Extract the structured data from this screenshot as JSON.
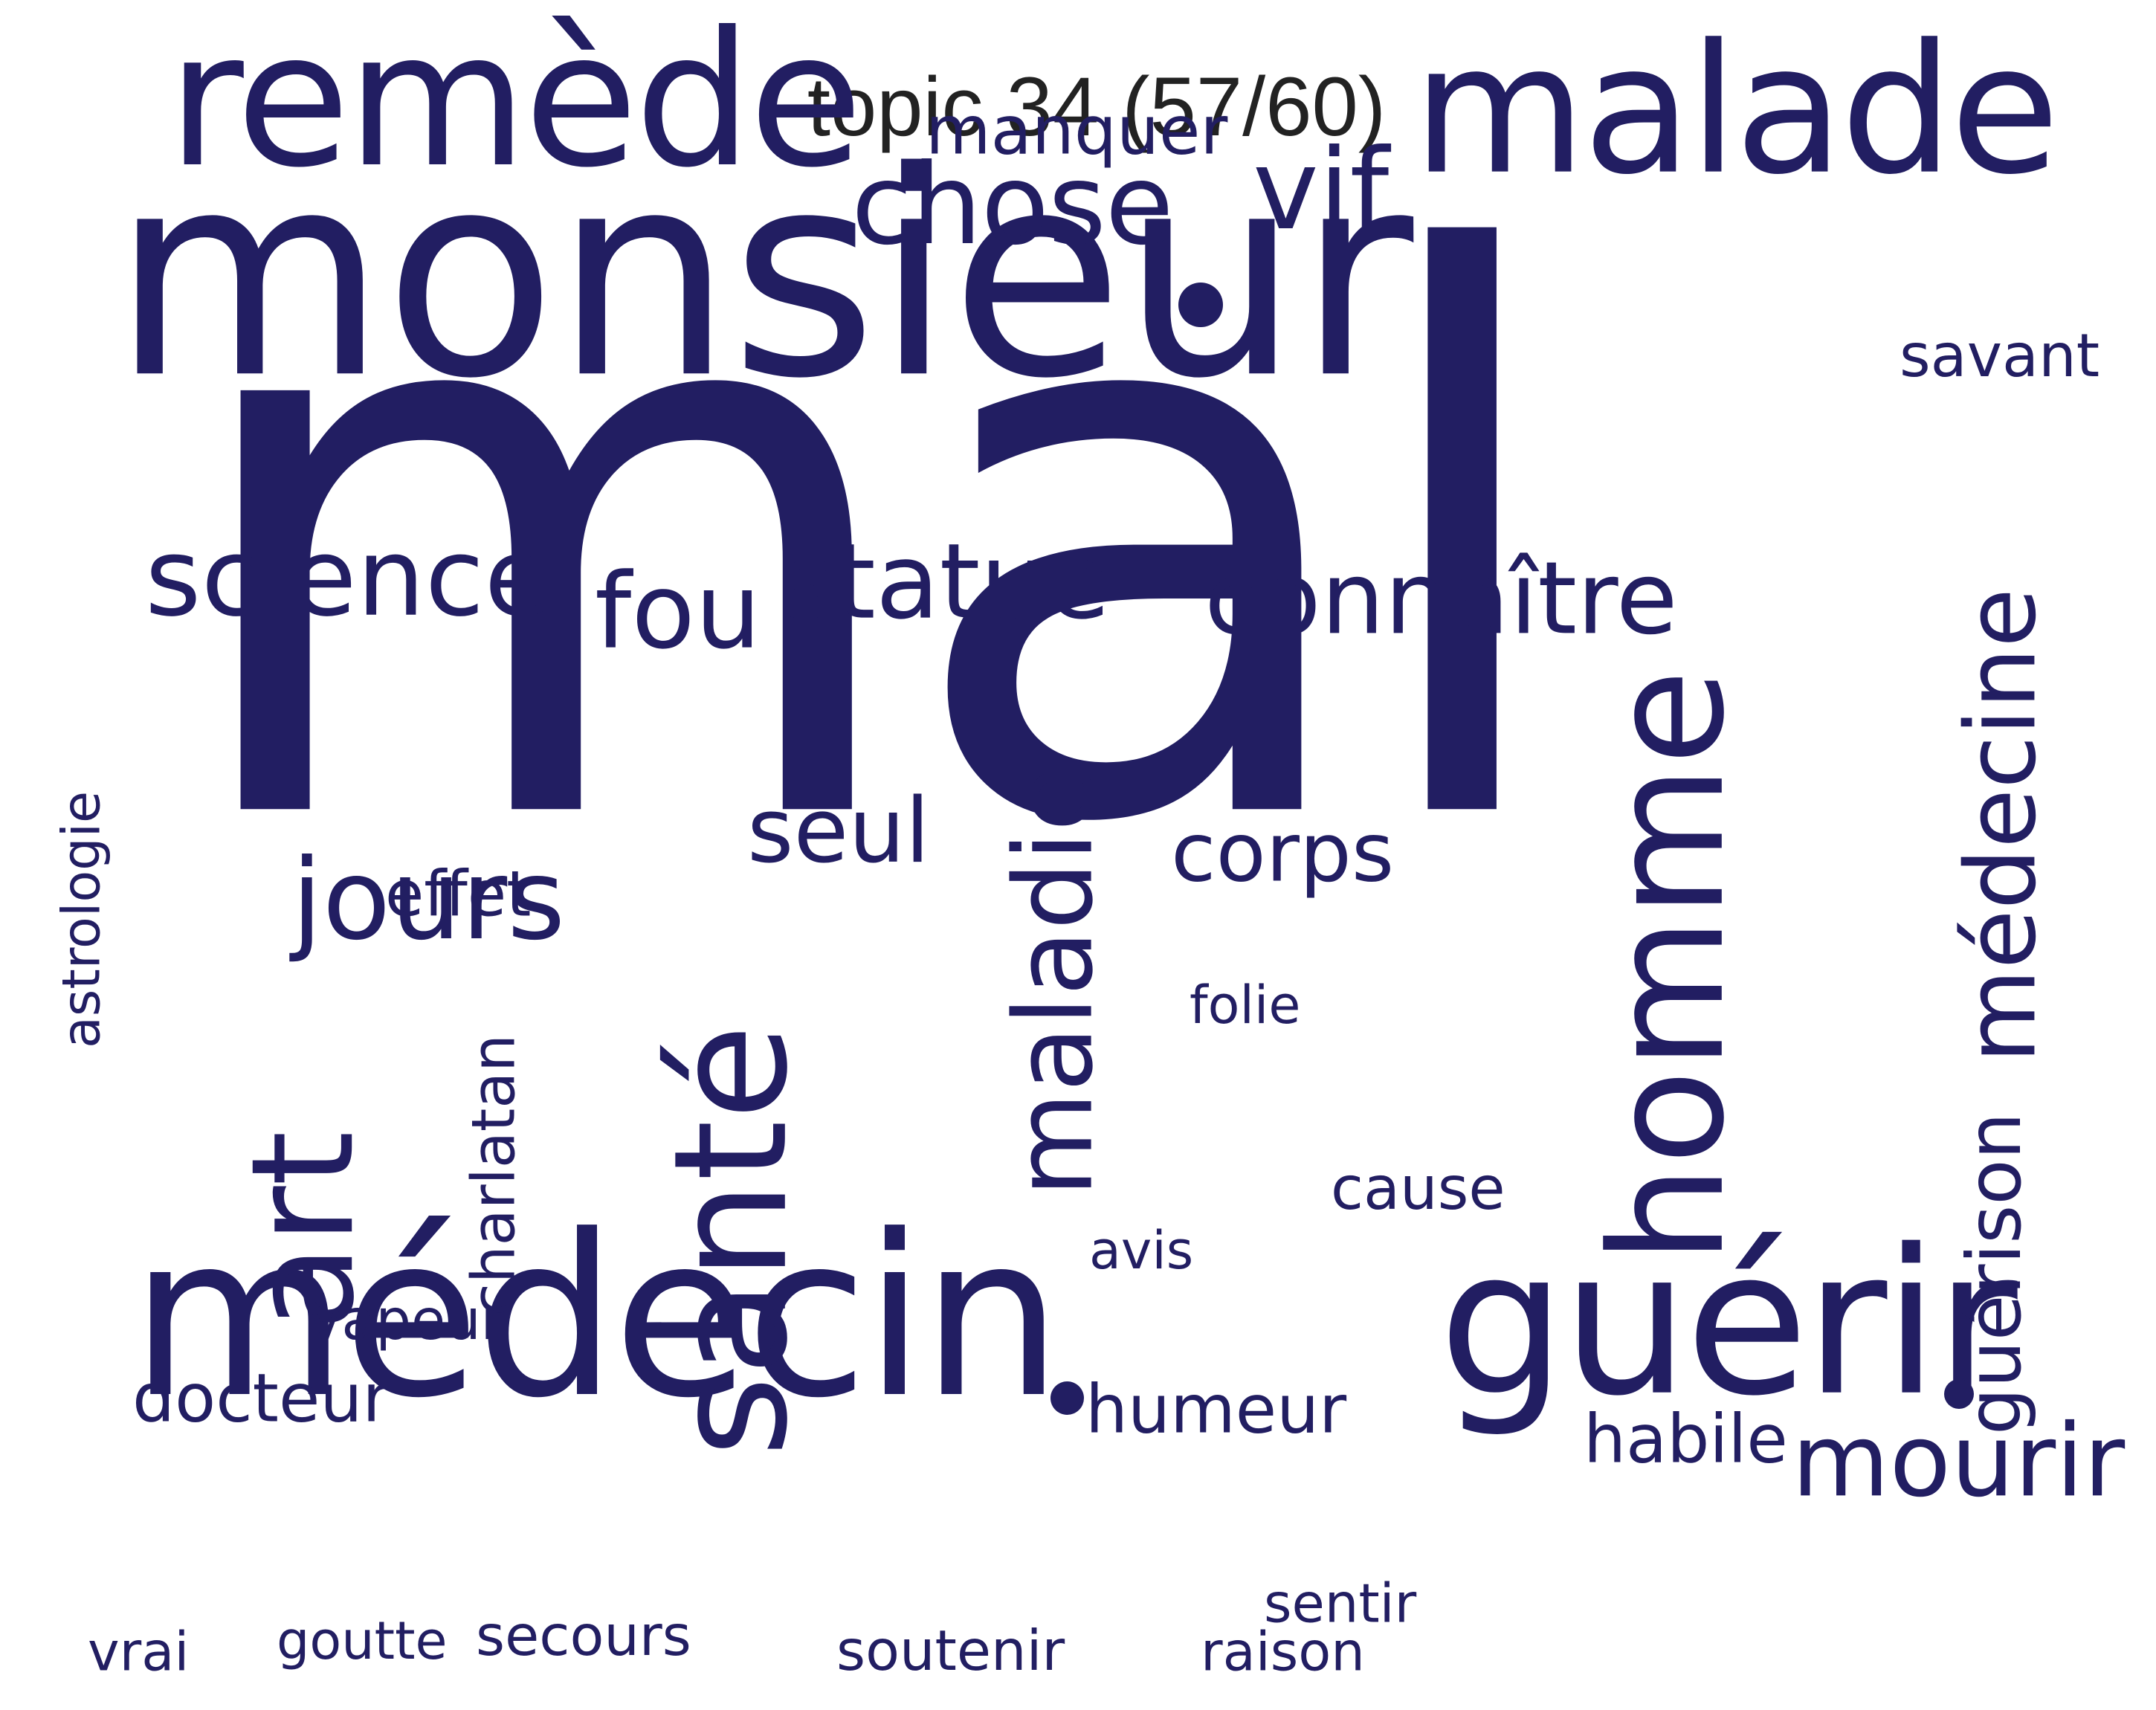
{
  "title": "topic 34 (57/60)",
  "word_color": "#221e62",
  "title_color": "#222222",
  "words": [
    {
      "text": "mal",
      "rank": 1
    },
    {
      "text": "monsieur",
      "rank": 2
    },
    {
      "text": "médecin",
      "rank": 3
    },
    {
      "text": "remède",
      "rank": 4
    },
    {
      "text": "malade",
      "rank": 5
    },
    {
      "text": "guérir",
      "rank": 6
    },
    {
      "text": "homme",
      "rank": 7
    },
    {
      "text": "santé",
      "rank": 8
    },
    {
      "text": "art",
      "rank": 9
    },
    {
      "text": "maladie",
      "rank": 10
    },
    {
      "text": "médecine",
      "rank": 11
    },
    {
      "text": "chose",
      "rank": 12
    },
    {
      "text": "vif",
      "rank": 13
    },
    {
      "text": "science",
      "rank": 14
    },
    {
      "text": "connaître",
      "rank": 15
    },
    {
      "text": "statue",
      "rank": 16
    },
    {
      "text": "fou",
      "rank": 17
    },
    {
      "text": "jours",
      "rank": 18
    },
    {
      "text": "seul",
      "rank": 19
    },
    {
      "text": "corps",
      "rank": 20
    },
    {
      "text": "mourir",
      "rank": 21
    },
    {
      "text": "guérison",
      "rank": 22
    },
    {
      "text": "manquer",
      "rank": 23
    },
    {
      "text": "docteur",
      "rank": 24
    },
    {
      "text": "humeur",
      "rank": 25
    },
    {
      "text": "charlatan",
      "rank": 26
    },
    {
      "text": "habile",
      "rank": 27
    },
    {
      "text": "savant",
      "rank": 28
    },
    {
      "text": "effet",
      "rank": 29
    },
    {
      "text": "cause",
      "rank": 30
    },
    {
      "text": "astrologie",
      "rank": 31
    },
    {
      "text": "secours",
      "rank": 32
    },
    {
      "text": "soutenir",
      "rank": 33
    },
    {
      "text": "sentir",
      "rank": 34
    },
    {
      "text": "vapeur",
      "rank": 35
    },
    {
      "text": "raison",
      "rank": 36
    },
    {
      "text": "goutte",
      "rank": 37
    },
    {
      "text": "folie",
      "rank": 38
    },
    {
      "text": "avis",
      "rank": 39
    },
    {
      "text": "vrai",
      "rank": 40
    },
    {
      "text": ".",
      "rank": 41
    },
    {
      "text": ".",
      "rank": 42
    },
    {
      "text": ".",
      "rank": 43
    }
  ]
}
